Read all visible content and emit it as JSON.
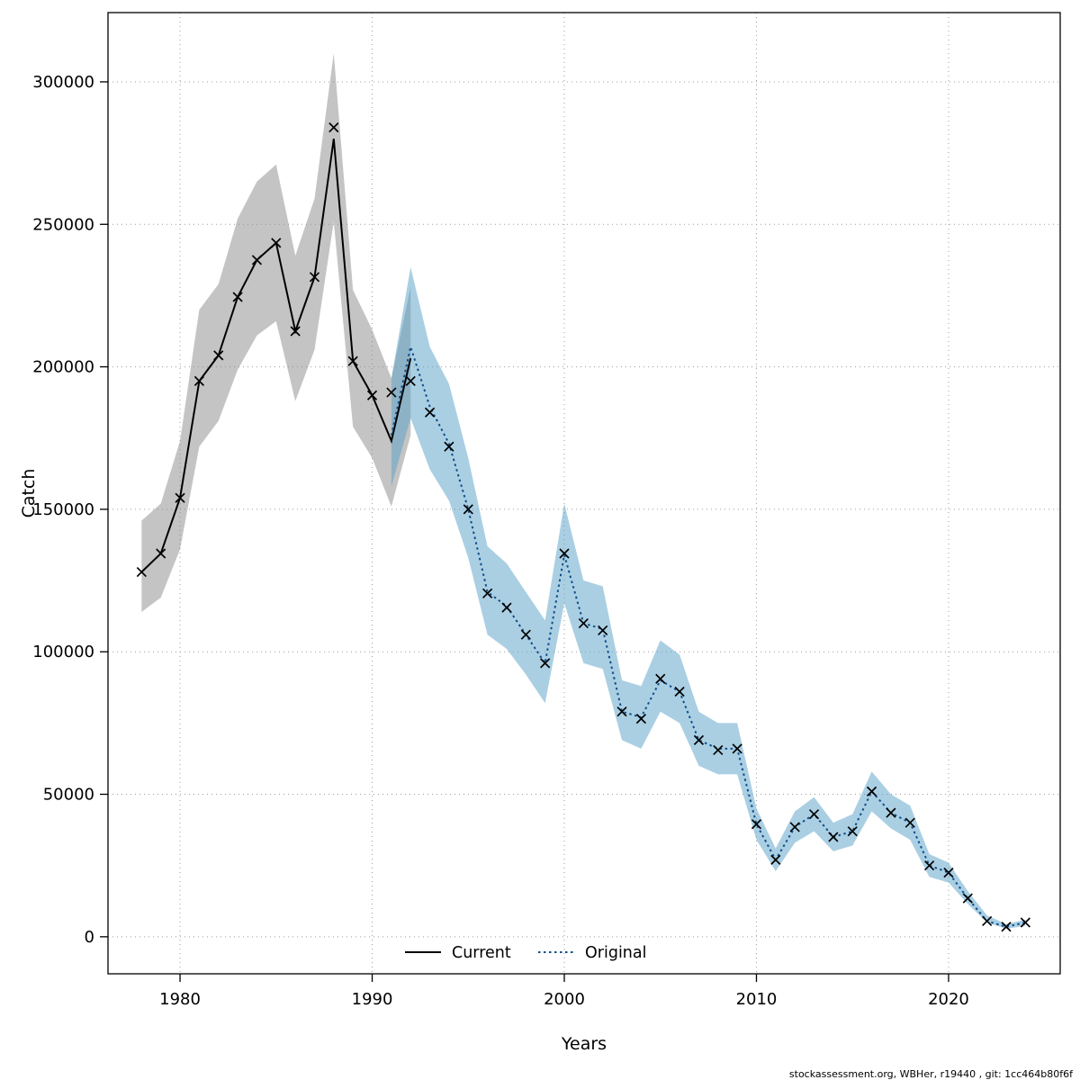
{
  "figure": {
    "footer": "stockassessment.org, WBHer, r19440 , git: 1cc464b80f6f"
  },
  "chart_data": {
    "type": "line",
    "title": "",
    "xlabel": "Years",
    "ylabel": "Catch",
    "xlim": [
      1976.25,
      2025.81
    ],
    "ylim": [
      -13000,
      324300
    ],
    "xticks": [
      1980,
      1990,
      2000,
      2010,
      2020
    ],
    "yticks": [
      0,
      50000,
      100000,
      150000,
      200000,
      250000,
      300000
    ],
    "grid": true,
    "legend_position": "bottom-center-inside",
    "markers": {
      "shape": "x-cross",
      "color": "#000000",
      "x": [
        1978,
        1979,
        1980,
        1981,
        1982,
        1983,
        1984,
        1985,
        1986,
        1987,
        1988,
        1989,
        1990,
        1991,
        1992,
        1993,
        1994,
        1995,
        1996,
        1997,
        1998,
        1999,
        2000,
        2001,
        2002,
        2003,
        2004,
        2005,
        2006,
        2007,
        2008,
        2009,
        2010,
        2011,
        2012,
        2013,
        2014,
        2015,
        2016,
        2017,
        2018,
        2019,
        2020,
        2021,
        2022,
        2023,
        2024
      ],
      "y": [
        128000,
        134500,
        154000,
        195000,
        204000,
        224500,
        237500,
        243500,
        212500,
        231500,
        284000,
        202000,
        190000,
        191000,
        195000,
        184000,
        172000,
        150000,
        120500,
        115500,
        106000,
        96000,
        134500,
        110000,
        107500,
        79000,
        76500,
        90500,
        86000,
        69000,
        65500,
        66000,
        39500,
        27000,
        38500,
        43000,
        35000,
        37000,
        51000,
        43500,
        40000,
        25000,
        22500,
        13500,
        5500,
        3500,
        5000
      ]
    },
    "series": [
      {
        "name": "Current",
        "style": "solid",
        "color": "#000000",
        "band_color": "#8a8a8a",
        "band_opacity": 0.5,
        "x": [
          1978,
          1979,
          1980,
          1981,
          1982,
          1983,
          1984,
          1985,
          1986,
          1987,
          1988,
          1989,
          1990,
          1991,
          1992
        ],
        "y": [
          128000,
          134500,
          154000,
          195000,
          204000,
          224500,
          237500,
          243500,
          212500,
          231500,
          280000,
          202000,
          190000,
          174000,
          203000
        ],
        "band_lo": [
          114000,
          119000,
          136000,
          172000,
          181000,
          199000,
          211000,
          216000,
          188000,
          206000,
          251000,
          179000,
          168000,
          151000,
          176000
        ],
        "band_hi": [
          146000,
          152000,
          174000,
          220000,
          229000,
          252000,
          265000,
          271000,
          239000,
          259000,
          310000,
          227000,
          213000,
          196000,
          228000
        ]
      },
      {
        "name": "Original",
        "style": "dotted",
        "color": "#104e8b",
        "band_color": "#56a0c8",
        "band_opacity": 0.5,
        "x": [
          1991,
          1992,
          1993,
          1994,
          1995,
          1996,
          1997,
          1998,
          1999,
          2000,
          2001,
          2002,
          2003,
          2004,
          2005,
          2006,
          2007,
          2008,
          2009,
          2010,
          2011,
          2012,
          2013,
          2014,
          2015,
          2016,
          2017,
          2018,
          2019,
          2020,
          2021,
          2022,
          2023,
          2024
        ],
        "y": [
          176000,
          207000,
          186000,
          173000,
          150000,
          121000,
          116000,
          106000,
          96000,
          134000,
          110000,
          108000,
          79000,
          77000,
          90000,
          86000,
          69000,
          66000,
          66000,
          39500,
          27000,
          38500,
          43000,
          35000,
          37000,
          51000,
          43500,
          40000,
          25000,
          22500,
          13500,
          5500,
          3500,
          5000
        ],
        "band_lo": [
          158000,
          182000,
          164000,
          153000,
          133000,
          106000,
          101000,
          92000,
          82000,
          117000,
          96000,
          94000,
          69000,
          66000,
          79000,
          75000,
          60000,
          57000,
          57000,
          34000,
          23000,
          33000,
          37000,
          30000,
          32000,
          44000,
          38000,
          34000,
          21000,
          19000,
          11500,
          5000,
          2800,
          3800
        ],
        "band_hi": [
          196000,
          235000,
          207000,
          194000,
          168000,
          137000,
          131000,
          121000,
          111000,
          152000,
          125000,
          123000,
          90000,
          88000,
          104000,
          99000,
          79000,
          75000,
          75000,
          45000,
          31000,
          44000,
          49000,
          40000,
          43000,
          58000,
          50000,
          46000,
          29000,
          26000,
          16000,
          7500,
          4500,
          6000
        ]
      }
    ]
  }
}
